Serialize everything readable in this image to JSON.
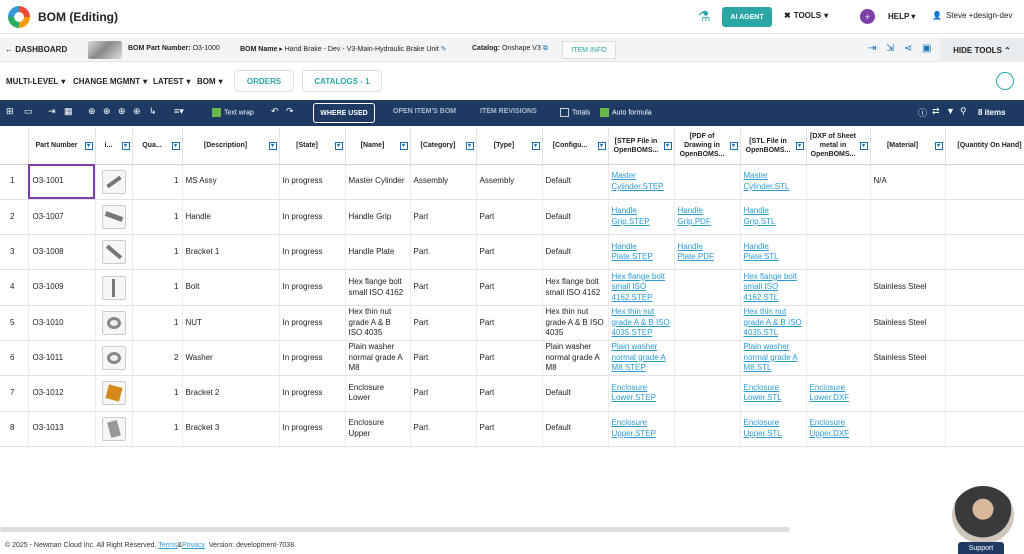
{
  "app": {
    "title": "BOM (Editing)"
  },
  "top": {
    "ai_agent": "AI AGENT",
    "tools": "TOOLS",
    "help_initial": "+",
    "help": "HELP",
    "user": "Steve +design-dev"
  },
  "context": {
    "dashboard": "DASHBOARD",
    "bom_part_label": "BOM Part Number:",
    "bom_part_value": "O3-1000",
    "bom_name_label": "BOM Name",
    "bom_name_value": "Hand Brake - Dev - V3-Main-Hydraulic Brake Unit",
    "catalog_label": "Catalog:",
    "catalog_value": "Onshape V3",
    "item_info": "ITEM INFO",
    "hide_tools": "HIDE TOOLS"
  },
  "views": {
    "multi_level": "MULTI-LEVEL",
    "change_mgmt": "CHANGE MGMNT",
    "latest": "LATEST",
    "bom": "BOM",
    "orders": "ORDERS",
    "catalogs": "CATALOGS - 1"
  },
  "toolbar": {
    "text_wrap": "Text wrap",
    "where_used": "WHERE USED",
    "open_items_bom": "OPEN ITEM'S BOM",
    "item_revisions": "ITEM REVISIONS",
    "totals": "Totals",
    "auto_formula": "Auto formula",
    "items_count": "8 items"
  },
  "columns": [
    "",
    "Part Number",
    "i...",
    "Qua...",
    "[Description]",
    "[State]",
    "[Name]",
    "[Category]",
    "[Type]",
    "[Configu...",
    "[STEP File in OpenBOMS...",
    "[PDF of Drawing in OpenBOMS...",
    "[STL File in OpenBOMS...",
    "[DXF of Sheet metal in OpenBOMS...",
    "[Material]",
    "[Quantity On Hand]"
  ],
  "rows": [
    {
      "idx": "1",
      "pn": "O3-1001",
      "qty": "1",
      "desc": "MS Assy",
      "state": "In progress",
      "name": "Master Cylinder",
      "cat": "Assembly",
      "type": "Assembly",
      "config": "Default",
      "step": "Master Cylinder.STEP",
      "pdf": "",
      "stl": "Master Cylinder.STL",
      "dxf": "",
      "material": "N/A",
      "qoh": ""
    },
    {
      "idx": "2",
      "pn": "O3-1007",
      "qty": "1",
      "desc": "Handle",
      "state": "In progress",
      "name": "Handle Grip",
      "cat": "Part",
      "type": "Part",
      "config": "Default",
      "step": "Handle Grip.STEP",
      "pdf": "Handle Grip.PDF",
      "stl": "Handle Grip.STL",
      "dxf": "",
      "material": "",
      "qoh": ""
    },
    {
      "idx": "3",
      "pn": "O3-1008",
      "qty": "1",
      "desc": "Bracket 1",
      "state": "In progress",
      "name": "Handle Plate",
      "cat": "Part",
      "type": "Part",
      "config": "Default",
      "step": "Handle Plate.STEP",
      "pdf": "Handle Plate.PDF",
      "stl": "Handle Plate.STL",
      "dxf": "",
      "material": "",
      "qoh": ""
    },
    {
      "idx": "4",
      "pn": "O3-1009",
      "qty": "1",
      "desc": "Bolt",
      "state": "In progress",
      "name": "Hex flange bolt small ISO 4162",
      "cat": "Part",
      "type": "Part",
      "config": "Hex flange bolt small ISO 4162",
      "step": "Hex flange bolt small ISO 4162.STEP",
      "pdf": "",
      "stl": "Hex flange bolt small ISO 4162.STL",
      "dxf": "",
      "material": "Stainless Steel",
      "qoh": ""
    },
    {
      "idx": "5",
      "pn": "O3-1010",
      "qty": "1",
      "desc": "NUT",
      "state": "In progress",
      "name": "Hex thin nut grade A & B ISO 4035",
      "cat": "Part",
      "type": "Part",
      "config": "Hex thin nut grade A & B ISO 4035",
      "step": "Hex thin nut grade A & B ISO 4035.STEP",
      "pdf": "",
      "stl": "Hex thin nut grade A & B ISO 4035.STL",
      "dxf": "",
      "material": "Stainless Steel",
      "qoh": ""
    },
    {
      "idx": "6",
      "pn": "O3-1011",
      "qty": "2",
      "desc": "Washer",
      "state": "In progress",
      "name": "Plain washer normal grade A M8",
      "cat": "Part",
      "type": "Part",
      "config": "Plain washer normal grade A M8",
      "step": "Plain washer normal grade A M8.STEP",
      "pdf": "",
      "stl": "Plain washer normal grade A M8.STL",
      "dxf": "",
      "material": "Stainless Steel",
      "qoh": ""
    },
    {
      "idx": "7",
      "pn": "O3-1012",
      "qty": "1",
      "desc": "Bracket 2",
      "state": "In progress",
      "name": "Enclosure Lower",
      "cat": "Part",
      "type": "Part",
      "config": "Default",
      "step": "Enclosure Lower.STEP",
      "pdf": "",
      "stl": "Enclosure Lower.STL",
      "dxf": "Enclosure Lower.DXF",
      "material": "",
      "qoh": ""
    },
    {
      "idx": "8",
      "pn": "O3-1013",
      "qty": "1",
      "desc": "Bracket 3",
      "state": "In progress",
      "name": "Enclosure Upper",
      "cat": "Part",
      "type": "Part",
      "config": "Default",
      "step": "Enclosure Upper.STEP",
      "pdf": "",
      "stl": "Enclosure Upper.STL",
      "dxf": "Enclosure Upper.DXF",
      "material": "",
      "qoh": ""
    }
  ],
  "footer": {
    "copyright": "© 2025 - Newman Cloud Inc. All Right Reserved.",
    "terms": "Terms",
    "amp": "&",
    "privacy": "Privacy",
    "version": "Version: development-7038"
  },
  "support": "Support",
  "colors": {
    "accent": "#2ca6a4",
    "toolbar": "#1e3a63",
    "link": "#2a9bd4",
    "selection": "#7b3fa6"
  }
}
